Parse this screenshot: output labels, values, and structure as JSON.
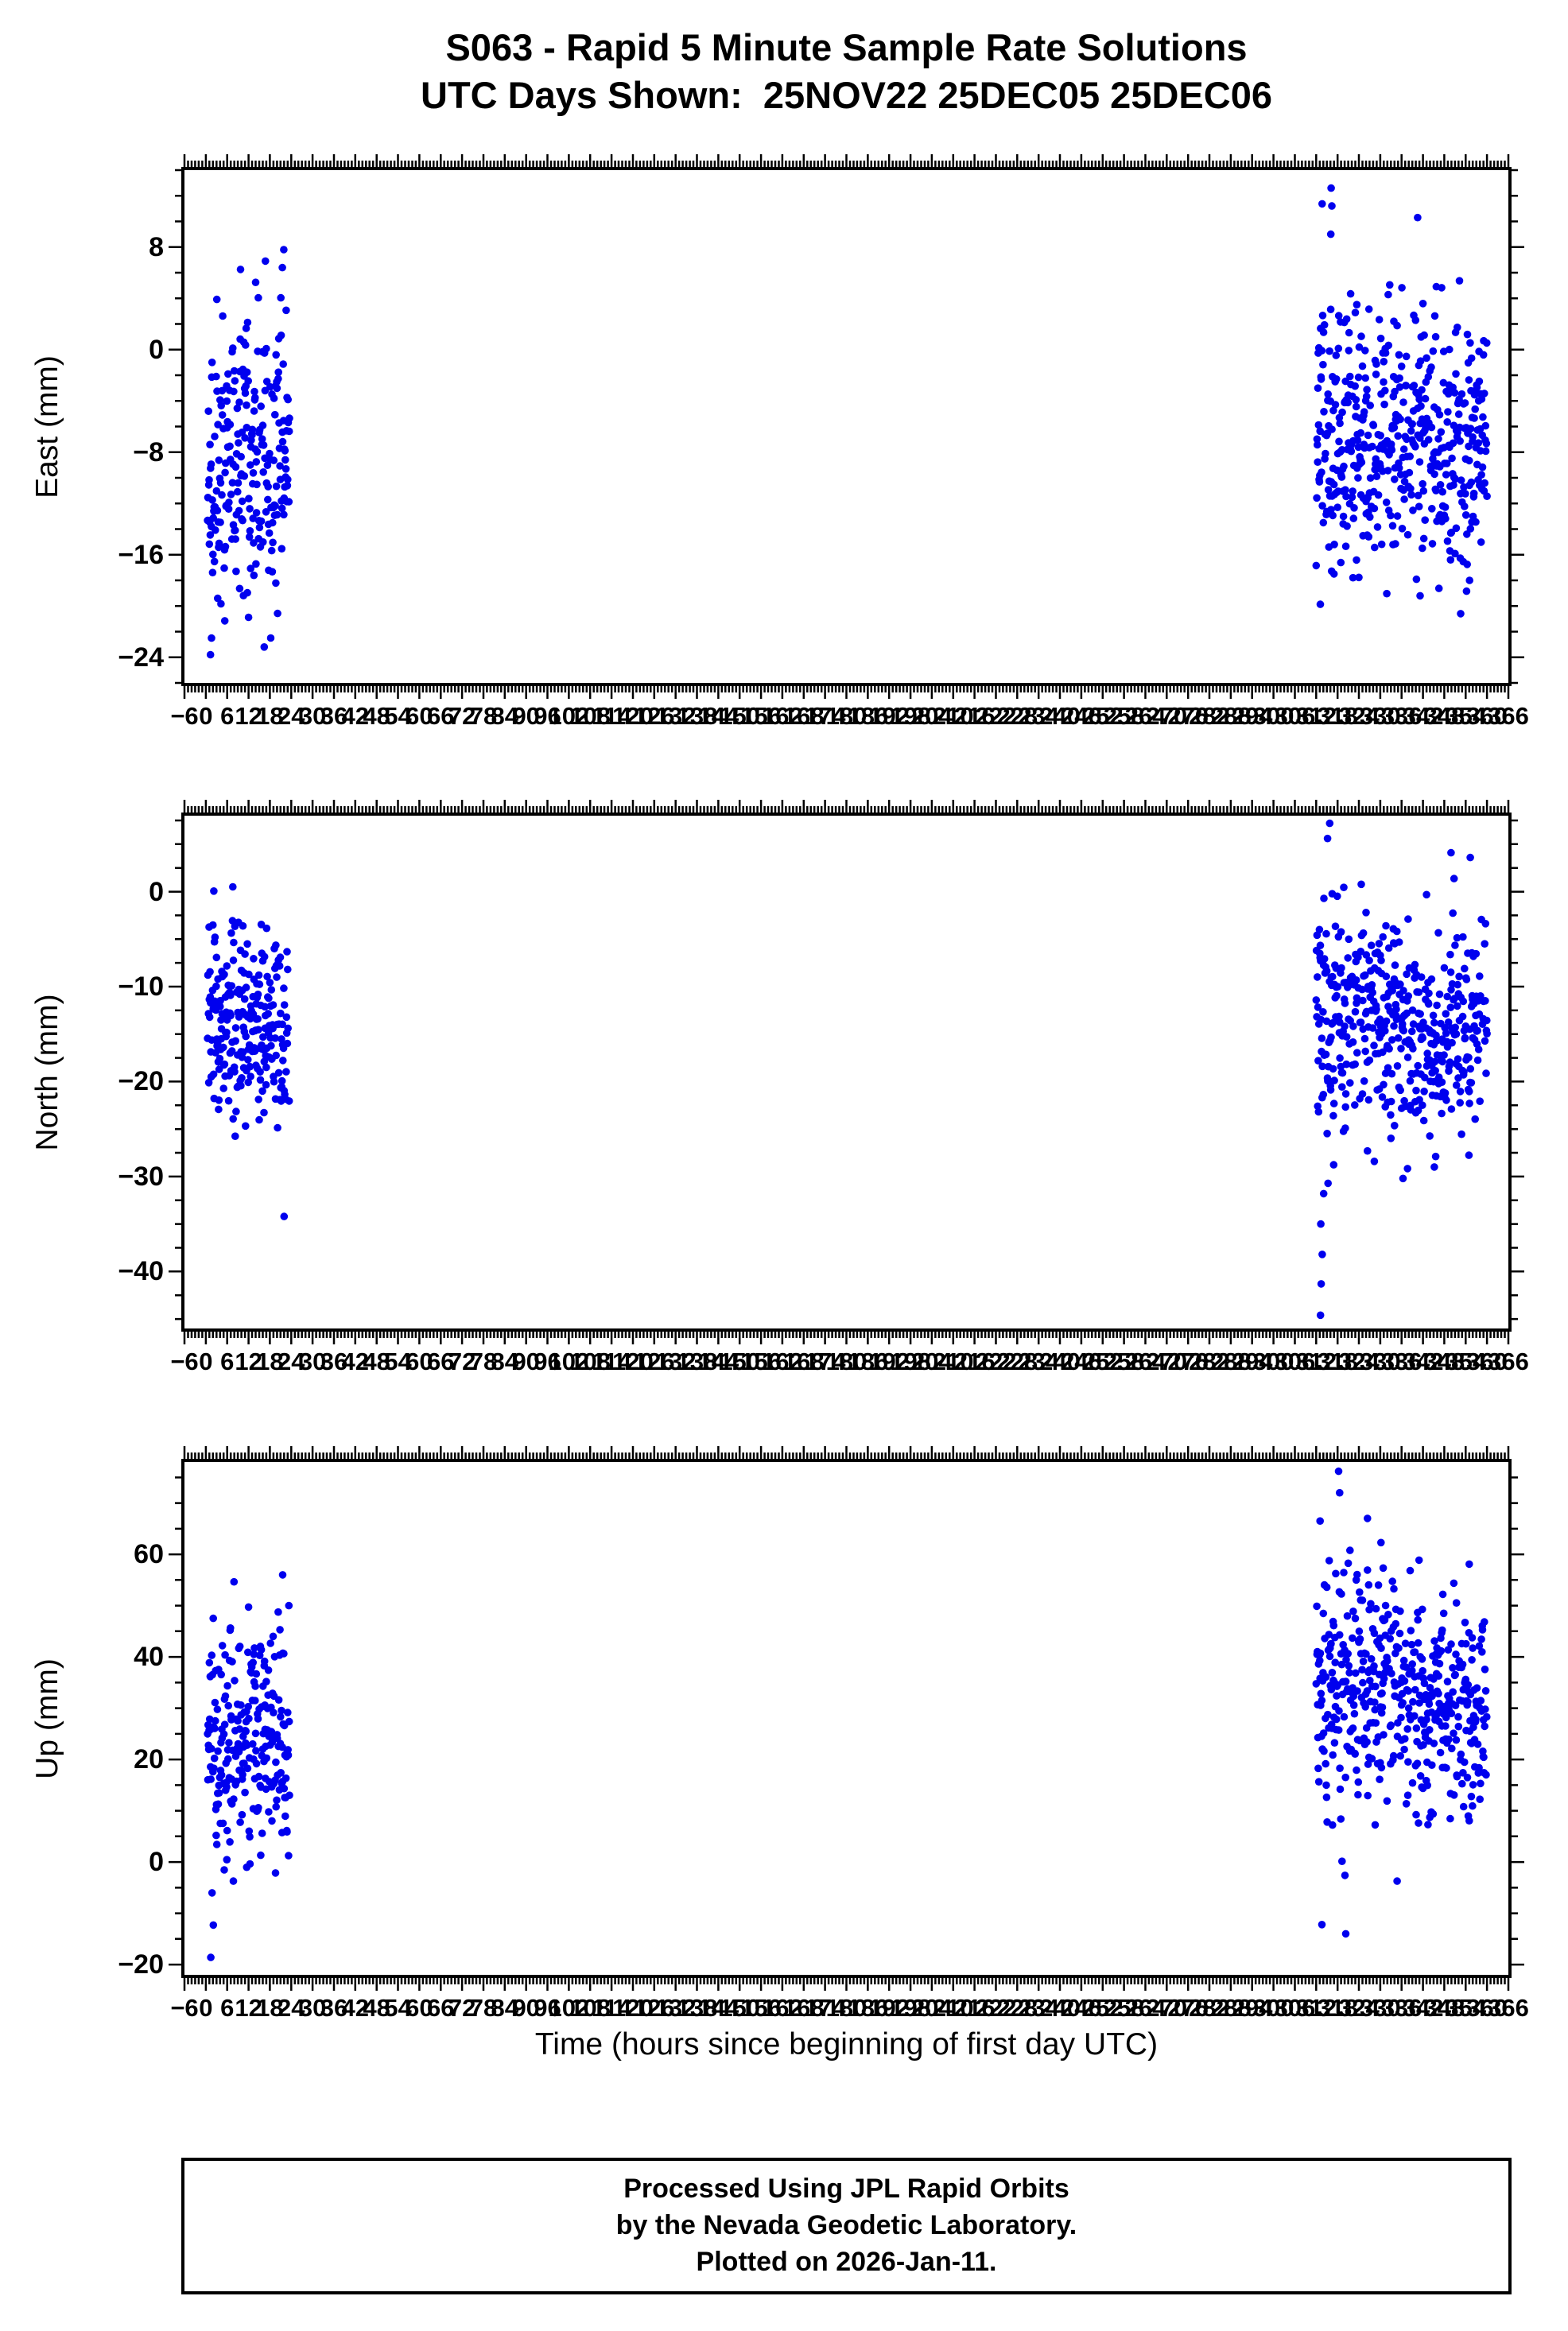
{
  "title": {
    "line1": "S063 - Rapid 5 Minute Sample Rate Solutions",
    "line2": "UTC Days Shown:  25NOV22 25DEC05 25DEC06"
  },
  "xaxis": {
    "title": "Time (hours since beginning of first day UTC)",
    "min": -6,
    "max": 366,
    "major_step": 6,
    "minor_step": 1
  },
  "footer": {
    "line1": "Processed Using JPL Rapid Orbits",
    "line2": "by the Nevada Geodetic Laboratory.",
    "line3": "Plotted on 2026-Jan-11."
  },
  "style": {
    "point_color": "#0000ee",
    "axis_color": "#000000"
  },
  "chart_data": [
    {
      "type": "scatter",
      "name": "East",
      "ylabel": "East (mm)",
      "ylim": [
        -26,
        14
      ],
      "y_major": 8,
      "y_minor": 2,
      "yticks": [
        8,
        0,
        -8,
        -16,
        -24
      ],
      "x_note": "UTC days 25NOV22 = hours 0-24, 25DEC05 = 312-336, 25DEC06 = 336-360",
      "clusters": [
        {
          "x_start": 0.5,
          "x_end": 23.5,
          "step_hours": 0.08333,
          "keep": 0.85,
          "y_mean": -8.5,
          "y_std": 5.5,
          "y_clamp": [
            -24.5,
            7.8
          ],
          "seed": 11
        },
        {
          "x_start": 312,
          "x_end": 336,
          "step_hours": 0.08333,
          "keep": 0.8,
          "y_mean": -6.5,
          "y_std": 5.2,
          "y_clamp": [
            -22,
            13
          ],
          "seed": 12
        },
        {
          "x_start": 336,
          "x_end": 360,
          "step_hours": 0.08333,
          "keep": 0.8,
          "y_mean": -7.5,
          "y_std": 4.8,
          "y_clamp": [
            -21,
            9
          ],
          "seed": 13
        }
      ],
      "outliers": [
        [
          1.3,
          -23.8
        ],
        [
          1.6,
          -22.5
        ],
        [
          21.9,
          7.8
        ],
        [
          21.5,
          6.4
        ],
        [
          316.2,
          12.6
        ],
        [
          316.4,
          11.2
        ],
        [
          316.1,
          9.0
        ],
        [
          340.5,
          10.3
        ],
        [
          317.0,
          -17.5
        ],
        [
          341.2,
          -19.2
        ],
        [
          352.6,
          -20.6
        ],
        [
          355.1,
          -18.0
        ]
      ]
    },
    {
      "type": "scatter",
      "name": "North",
      "ylabel": "North (mm)",
      "ylim": [
        -46,
        8
      ],
      "y_major": 10,
      "y_minor": 2.5,
      "yticks": [
        0,
        -10,
        -20,
        -30,
        -40
      ],
      "clusters": [
        {
          "x_start": 0.5,
          "x_end": 23.5,
          "step_hours": 0.08333,
          "keep": 0.85,
          "y_mean": -14,
          "y_std": 5.5,
          "y_clamp": [
            -27,
            4
          ],
          "seed": 21
        },
        {
          "x_start": 312,
          "x_end": 336,
          "step_hours": 0.08333,
          "keep": 0.8,
          "y_mean": -13,
          "y_std": 6.0,
          "y_clamp": [
            -32,
            6
          ],
          "seed": 22
        },
        {
          "x_start": 336,
          "x_end": 360,
          "step_hours": 0.08333,
          "keep": 0.8,
          "y_mean": -15,
          "y_std": 5.0,
          "y_clamp": [
            -30,
            3
          ],
          "seed": 23
        }
      ],
      "outliers": [
        [
          22.0,
          -34.2
        ],
        [
          313.2,
          -44.6
        ],
        [
          313.4,
          -41.3
        ],
        [
          313.7,
          -38.2
        ],
        [
          313.3,
          -35.0
        ],
        [
          314.1,
          -31.8
        ],
        [
          336.4,
          -30.2
        ],
        [
          345.2,
          -29.0
        ],
        [
          315.8,
          7.2
        ],
        [
          315.2,
          5.6
        ],
        [
          349.9,
          4.1
        ],
        [
          355.3,
          3.6
        ]
      ]
    },
    {
      "type": "scatter",
      "name": "Up",
      "ylabel": "Up (mm)",
      "ylim": [
        -22,
        78
      ],
      "y_major": 20,
      "y_minor": 5,
      "yticks": [
        60,
        40,
        20,
        0,
        -20
      ],
      "clusters": [
        {
          "x_start": 0.5,
          "x_end": 23.5,
          "step_hours": 0.08333,
          "keep": 0.85,
          "y_mean": 25,
          "y_std": 12,
          "y_clamp": [
            -19,
            56
          ],
          "seed": 31
        },
        {
          "x_start": 312,
          "x_end": 336,
          "step_hours": 0.08333,
          "keep": 0.8,
          "y_mean": 35,
          "y_std": 12,
          "y_clamp": [
            -13,
            70
          ],
          "seed": 32
        },
        {
          "x_start": 336,
          "x_end": 360,
          "step_hours": 0.08333,
          "keep": 0.8,
          "y_mean": 30,
          "y_std": 11,
          "y_clamp": [
            -10,
            62
          ],
          "seed": 33
        }
      ],
      "outliers": [
        [
          1.4,
          -18.6
        ],
        [
          2.1,
          -12.3
        ],
        [
          21.6,
          56.0
        ],
        [
          313.1,
          66.5
        ],
        [
          318.3,
          76.2
        ],
        [
          318.6,
          72.0
        ],
        [
          326.4,
          67.0
        ],
        [
          330.2,
          62.3
        ],
        [
          355.0,
          58.1
        ],
        [
          313.6,
          -12.2
        ],
        [
          320.3,
          -14.0
        ]
      ]
    }
  ]
}
